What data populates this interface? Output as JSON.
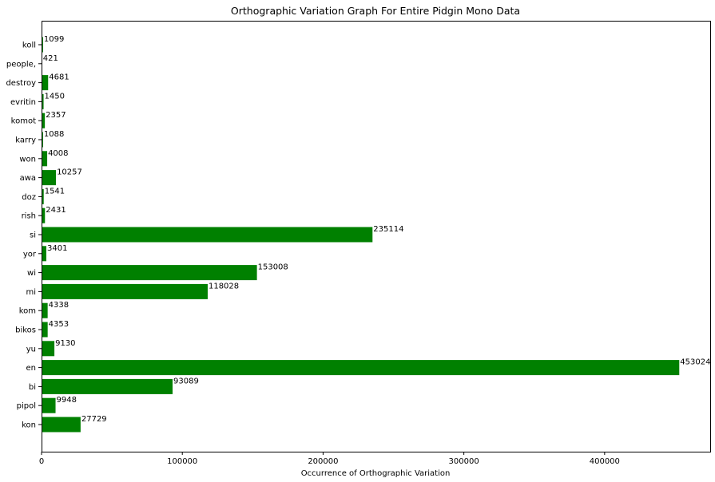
{
  "chart_data": {
    "type": "bar",
    "orientation": "horizontal",
    "title": "Orthographic Variation Graph For Entire Pidgin Mono Data",
    "xlabel": "Occurrence of Orthographic Variation",
    "ylabel": "",
    "xlim": [
      0,
      475000
    ],
    "xticks": [
      0,
      100000,
      200000,
      300000,
      400000
    ],
    "grid": false,
    "bar_color": "#008000",
    "categories": [
      "kon",
      "pipol",
      "bi",
      "en",
      "yu",
      "bikos",
      "kom",
      "mi",
      "wi",
      "yor",
      "si",
      "rish",
      "doz",
      "awa",
      "won",
      "karry",
      "komot",
      "evritin",
      "destroy",
      "people,",
      "koll"
    ],
    "values": [
      27729,
      9948,
      93089,
      453024,
      9130,
      4353,
      4338,
      118028,
      153008,
      3401,
      235114,
      2431,
      1541,
      10257,
      4008,
      1088,
      2357,
      1450,
      4681,
      421,
      1099
    ]
  }
}
